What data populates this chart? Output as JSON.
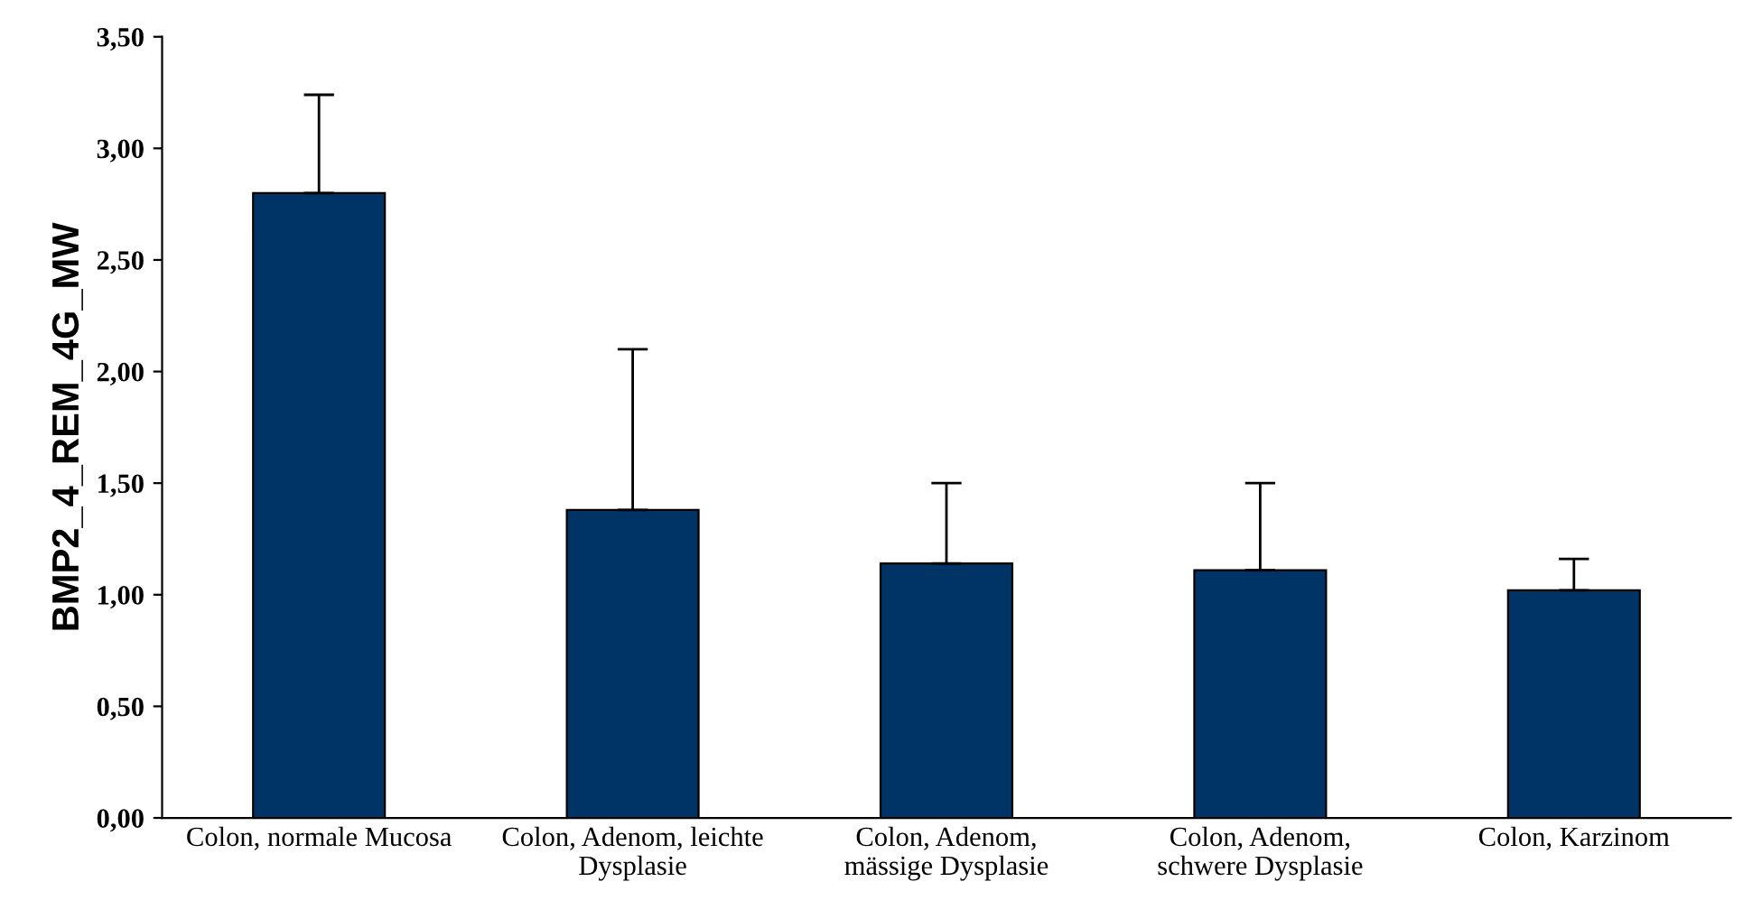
{
  "chart_data": {
    "type": "bar",
    "ylabel": "BMP2_4_REM_4G_MW",
    "categories": [
      "Colon, normale Mucosa",
      "Colon, Adenom, leichte\nDysplasie",
      "Colon, Adenom,\nmässige Dysplasie",
      "Colon, Adenom,\nschwere Dysplasie",
      "Colon, Karzinom"
    ],
    "values": [
      2.8,
      1.38,
      1.14,
      1.11,
      1.02
    ],
    "errors": [
      [
        2.8,
        3.24
      ],
      [
        1.38,
        2.1
      ],
      [
        1.14,
        1.5
      ],
      [
        1.11,
        1.5
      ],
      [
        1.02,
        1.16
      ]
    ],
    "color": "#003366",
    "ylim": [
      0,
      3.5
    ],
    "yticks": [
      {
        "value": 0,
        "label": "0,00"
      },
      {
        "value": 0.5,
        "label": "0,50"
      },
      {
        "value": 1.0,
        "label": "1,00"
      },
      {
        "value": 1.5,
        "label": "1,50"
      },
      {
        "value": 2.0,
        "label": "2,00"
      },
      {
        "value": 2.5,
        "label": "2,50"
      },
      {
        "value": 3.0,
        "label": "3,00"
      },
      {
        "value": 3.5,
        "label": "3,50"
      }
    ],
    "grid": false
  }
}
